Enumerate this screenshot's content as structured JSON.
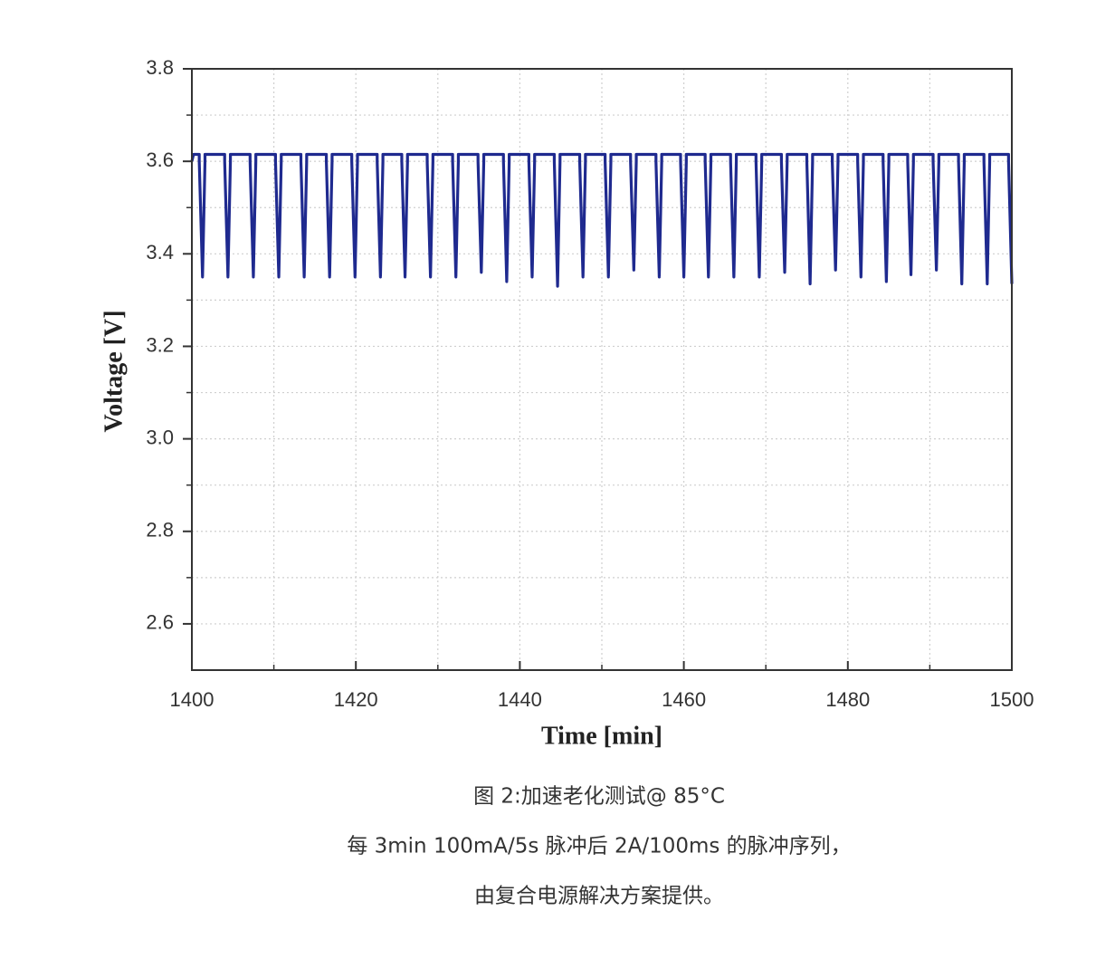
{
  "chart_data": {
    "type": "line",
    "xlabel": "Time [min]",
    "ylabel": "Voltage [V]",
    "color": "#1f2a8f",
    "grid": true,
    "xlim": [
      1400,
      1500
    ],
    "ylim": [
      2.5,
      3.8
    ],
    "xticks": [
      1400,
      1420,
      1440,
      1460,
      1480,
      1500
    ],
    "yticks": [
      2.6,
      2.8,
      {
        "value": 3,
        "label": "3.0"
      },
      3.2,
      3.4,
      3.6,
      3.8
    ],
    "x": [
      1400,
      1400.2,
      1400.9,
      1400.9,
      1401.3,
      1401.6,
      1401.6,
      1404.0,
      1404.0,
      1404.4,
      1404.7,
      1404.7,
      1407.1,
      1407.1,
      1407.5,
      1407.8,
      1407.8,
      1410.2,
      1410.2,
      1410.6,
      1410.9,
      1410.9,
      1413.3,
      1413.3,
      1413.7,
      1414.0,
      1414.0,
      1416.4,
      1416.4,
      1416.8,
      1417.1,
      1417.1,
      1419.5,
      1419.5,
      1419.9,
      1420.2,
      1420.2,
      1422.6,
      1422.6,
      1423.0,
      1423.3,
      1423.3,
      1425.6,
      1425.6,
      1426.0,
      1426.3,
      1426.3,
      1428.7,
      1428.7,
      1429.1,
      1429.4,
      1429.4,
      1431.8,
      1431.8,
      1432.2,
      1432.5,
      1432.5,
      1434.9,
      1434.9,
      1435.3,
      1435.6,
      1435.6,
      1438.0,
      1438.0,
      1438.4,
      1438.7,
      1438.7,
      1441.1,
      1441.1,
      1441.5,
      1441.8,
      1441.8,
      1444.2,
      1444.2,
      1444.6,
      1444.9,
      1444.9,
      1447.3,
      1447.3,
      1447.7,
      1448.0,
      1448.0,
      1450.4,
      1450.4,
      1450.8,
      1451.1,
      1451.1,
      1453.5,
      1453.5,
      1453.9,
      1454.2,
      1454.2,
      1456.6,
      1456.6,
      1457.0,
      1457.3,
      1457.3,
      1459.6,
      1459.6,
      1460.0,
      1460.3,
      1460.3,
      1462.6,
      1462.6,
      1463.0,
      1463.3,
      1463.3,
      1465.7,
      1465.7,
      1466.1,
      1466.4,
      1466.4,
      1468.8,
      1468.8,
      1469.2,
      1469.5,
      1469.5,
      1471.9,
      1471.9,
      1472.3,
      1472.6,
      1472.6,
      1475.0,
      1475.0,
      1475.4,
      1475.7,
      1475.7,
      1478.1,
      1478.1,
      1478.5,
      1478.8,
      1478.8,
      1481.2,
      1481.2,
      1481.6,
      1481.9,
      1481.9,
      1484.3,
      1484.3,
      1484.7,
      1485.0,
      1485.0,
      1487.3,
      1487.3,
      1487.7,
      1488.0,
      1488.0,
      1490.4,
      1490.4,
      1490.8,
      1491.1,
      1491.1,
      1493.5,
      1493.5,
      1493.9,
      1494.2,
      1494.2,
      1496.6,
      1496.6,
      1497.0,
      1497.3,
      1497.3,
      1499.6,
      1499.6,
      1500.0
    ],
    "values": [
      3.6,
      3.615,
      3.615,
      3.6,
      3.35,
      3.6,
      3.615,
      3.615,
      3.6,
      3.35,
      3.6,
      3.615,
      3.615,
      3.6,
      3.35,
      3.6,
      3.615,
      3.615,
      3.6,
      3.35,
      3.6,
      3.615,
      3.615,
      3.6,
      3.35,
      3.6,
      3.615,
      3.615,
      3.6,
      3.35,
      3.6,
      3.615,
      3.615,
      3.6,
      3.35,
      3.6,
      3.615,
      3.615,
      3.6,
      3.35,
      3.6,
      3.615,
      3.615,
      3.6,
      3.35,
      3.6,
      3.615,
      3.615,
      3.6,
      3.35,
      3.6,
      3.615,
      3.615,
      3.6,
      3.35,
      3.6,
      3.615,
      3.615,
      3.6,
      3.36,
      3.6,
      3.615,
      3.615,
      3.6,
      3.34,
      3.6,
      3.615,
      3.615,
      3.6,
      3.35,
      3.6,
      3.615,
      3.615,
      3.6,
      3.33,
      3.6,
      3.615,
      3.615,
      3.6,
      3.35,
      3.6,
      3.615,
      3.615,
      3.6,
      3.35,
      3.6,
      3.615,
      3.615,
      3.6,
      3.365,
      3.6,
      3.615,
      3.615,
      3.6,
      3.35,
      3.6,
      3.615,
      3.615,
      3.6,
      3.35,
      3.6,
      3.615,
      3.615,
      3.6,
      3.35,
      3.6,
      3.615,
      3.615,
      3.6,
      3.35,
      3.6,
      3.615,
      3.615,
      3.6,
      3.35,
      3.6,
      3.615,
      3.615,
      3.6,
      3.36,
      3.6,
      3.615,
      3.615,
      3.6,
      3.335,
      3.6,
      3.615,
      3.615,
      3.6,
      3.365,
      3.6,
      3.615,
      3.615,
      3.6,
      3.35,
      3.6,
      3.615,
      3.615,
      3.6,
      3.34,
      3.6,
      3.615,
      3.615,
      3.6,
      3.355,
      3.6,
      3.615,
      3.615,
      3.6,
      3.365,
      3.6,
      3.615,
      3.615,
      3.6,
      3.335,
      3.6,
      3.615,
      3.615,
      3.6,
      3.335,
      3.6,
      3.615,
      3.615,
      3.6,
      3.335
    ]
  },
  "caption": {
    "lines": [
      "图 2:加速老化测试@ 85°C",
      "每 3min 100mA/5s 脉冲后 2A/100ms 的脉冲序列，",
      "由复合电源解决方案提供。"
    ]
  }
}
